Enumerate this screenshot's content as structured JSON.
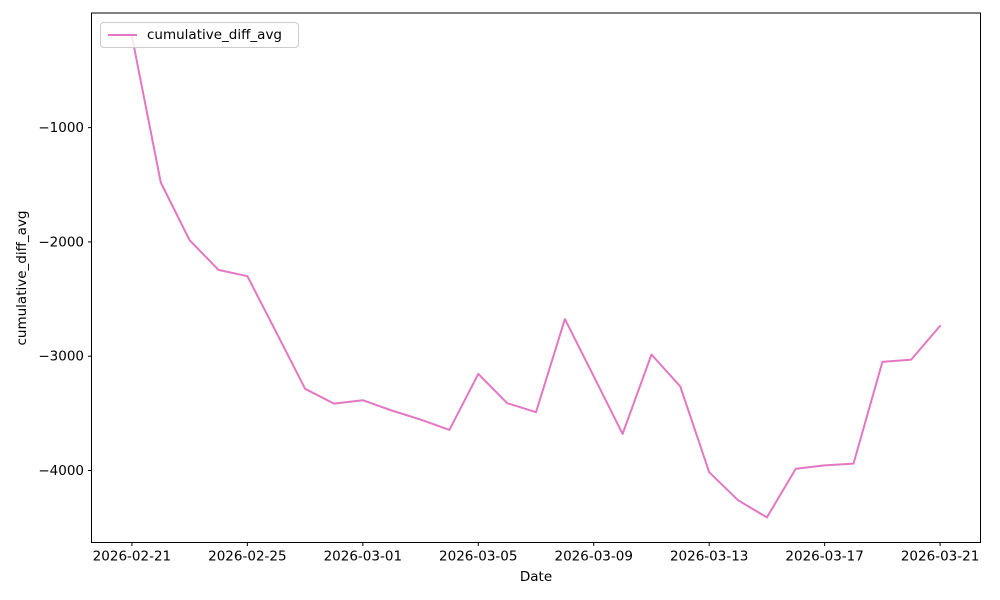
{
  "chart_data": {
    "type": "line",
    "title": "",
    "xlabel": "Date",
    "ylabel": "cumulative_diff_avg",
    "grid": false,
    "background": "#ffffff",
    "axis_color": "#000000",
    "legend": {
      "position": "upper left",
      "entries": [
        "cumulative_diff_avg"
      ]
    },
    "x": [
      "2026-02-21",
      "2026-02-22",
      "2026-02-23",
      "2026-02-24",
      "2026-02-25",
      "2026-02-26",
      "2026-02-27",
      "2026-02-28",
      "2026-03-01",
      "2026-03-02",
      "2026-03-03",
      "2026-03-04",
      "2026-03-05",
      "2026-03-06",
      "2026-03-07",
      "2026-03-08",
      "2026-03-09",
      "2026-03-10",
      "2026-03-11",
      "2026-03-12",
      "2026-03-13",
      "2026-03-14",
      "2026-03-15",
      "2026-03-16",
      "2026-03-17",
      "2026-03-18",
      "2026-03-19",
      "2026-03-20",
      "2026-03-21"
    ],
    "series": [
      {
        "name": "cumulative_diff_avg",
        "color": "#e377c2",
        "values": [
          -200,
          -1480,
          -1985,
          -2245,
          -2300,
          -2790,
          -3285,
          -3415,
          -3385,
          -3475,
          -3555,
          -3645,
          -3155,
          -3410,
          -3490,
          -2675,
          -3175,
          -3680,
          -2985,
          -3265,
          -4015,
          -4260,
          -4410,
          -3985,
          -3955,
          -3940,
          -3050,
          -3030,
          -2735
        ]
      }
    ],
    "x_tick_labels": [
      "2026-02-21",
      "2026-02-25",
      "2026-03-01",
      "2026-03-05",
      "2026-03-09",
      "2026-03-13",
      "2026-03-17",
      "2026-03-21"
    ],
    "x_tick_indices": [
      0,
      4,
      8,
      12,
      16,
      20,
      24,
      28
    ],
    "y_ticks": [
      -1000,
      -2000,
      -3000,
      -4000
    ],
    "y_tick_labels": [
      "−1000",
      "−2000",
      "−3000",
      "−4000"
    ],
    "ylim": [
      -4630,
      3
    ],
    "xlim_index": [
      -1.4,
      29.4
    ]
  }
}
